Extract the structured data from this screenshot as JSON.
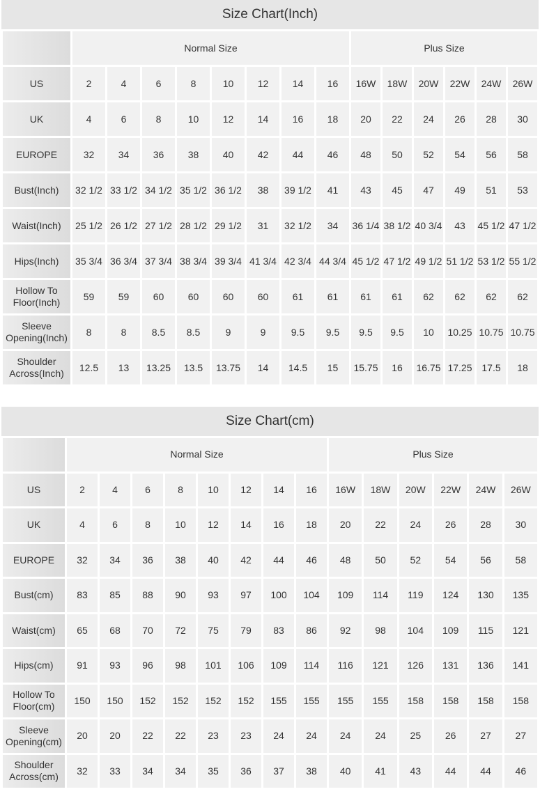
{
  "charts": [
    {
      "title": "Size Chart(Inch)",
      "groups": {
        "normal": "Normal Size",
        "plus": "Plus Size"
      },
      "rows": [
        {
          "label": "US",
          "values": [
            "2",
            "4",
            "6",
            "8",
            "10",
            "12",
            "14",
            "16",
            "16W",
            "18W",
            "20W",
            "22W",
            "24W",
            "26W"
          ]
        },
        {
          "label": "UK",
          "values": [
            "4",
            "6",
            "8",
            "10",
            "12",
            "14",
            "16",
            "18",
            "20",
            "22",
            "24",
            "26",
            "28",
            "30"
          ]
        },
        {
          "label": "EUROPE",
          "values": [
            "32",
            "34",
            "36",
            "38",
            "40",
            "42",
            "44",
            "46",
            "48",
            "50",
            "52",
            "54",
            "56",
            "58"
          ]
        },
        {
          "label": "Bust(Inch)",
          "values": [
            "32 1/2",
            "33 1/2",
            "34 1/2",
            "35 1/2",
            "36 1/2",
            "38",
            "39 1/2",
            "41",
            "43",
            "45",
            "47",
            "49",
            "51",
            "53"
          ]
        },
        {
          "label": "Waist(Inch)",
          "values": [
            "25 1/2",
            "26 1/2",
            "27 1/2",
            "28 1/2",
            "29 1/2",
            "31",
            "32 1/2",
            "34",
            "36 1/4",
            "38 1/2",
            "40 3/4",
            "43",
            "45 1/2",
            "47 1/2"
          ]
        },
        {
          "label": "Hips(Inch)",
          "values": [
            "35 3/4",
            "36 3/4",
            "37 3/4",
            "38 3/4",
            "39 3/4",
            "41 3/4",
            "42 3/4",
            "44 3/4",
            "45 1/2",
            "47 1/2",
            "49 1/2",
            "51 1/2",
            "53 1/2",
            "55 1/2"
          ]
        },
        {
          "label": "Hollow To Floor(Inch)",
          "values": [
            "59",
            "59",
            "60",
            "60",
            "60",
            "60",
            "61",
            "61",
            "61",
            "61",
            "62",
            "62",
            "62",
            "62"
          ]
        },
        {
          "label": "Sleeve Opening(Inch)",
          "values": [
            "8",
            "8",
            "8.5",
            "8.5",
            "9",
            "9",
            "9.5",
            "9.5",
            "9.5",
            "9.5",
            "10",
            "10.25",
            "10.75",
            "10.75"
          ]
        },
        {
          "label": "Shoulder Across(Inch)",
          "values": [
            "12.5",
            "13",
            "13.25",
            "13.5",
            "13.75",
            "14",
            "14.5",
            "15",
            "15.75",
            "16",
            "16.75",
            "17.25",
            "17.5",
            "18"
          ]
        }
      ]
    },
    {
      "title": "Size Chart(cm)",
      "groups": {
        "normal": "Normal Size",
        "plus": "Plus Size"
      },
      "rows": [
        {
          "label": "US",
          "values": [
            "2",
            "4",
            "6",
            "8",
            "10",
            "12",
            "14",
            "16",
            "16W",
            "18W",
            "20W",
            "22W",
            "24W",
            "26W"
          ]
        },
        {
          "label": "UK",
          "values": [
            "4",
            "6",
            "8",
            "10",
            "12",
            "14",
            "16",
            "18",
            "20",
            "22",
            "24",
            "26",
            "28",
            "30"
          ]
        },
        {
          "label": "EUROPE",
          "values": [
            "32",
            "34",
            "36",
            "38",
            "40",
            "42",
            "44",
            "46",
            "48",
            "50",
            "52",
            "54",
            "56",
            "58"
          ]
        },
        {
          "label": "Bust(cm)",
          "values": [
            "83",
            "85",
            "88",
            "90",
            "93",
            "97",
            "100",
            "104",
            "109",
            "114",
            "119",
            "124",
            "130",
            "135"
          ]
        },
        {
          "label": "Waist(cm)",
          "values": [
            "65",
            "68",
            "70",
            "72",
            "75",
            "79",
            "83",
            "86",
            "92",
            "98",
            "104",
            "109",
            "115",
            "121"
          ]
        },
        {
          "label": "Hips(cm)",
          "values": [
            "91",
            "93",
            "96",
            "98",
            "101",
            "106",
            "109",
            "114",
            "116",
            "121",
            "126",
            "131",
            "136",
            "141"
          ]
        },
        {
          "label": "Hollow To Floor(cm)",
          "values": [
            "150",
            "150",
            "152",
            "152",
            "152",
            "152",
            "155",
            "155",
            "155",
            "155",
            "158",
            "158",
            "158",
            "158"
          ]
        },
        {
          "label": "Sleeve Opening(cm)",
          "values": [
            "20",
            "20",
            "22",
            "22",
            "23",
            "23",
            "24",
            "24",
            "24",
            "24",
            "25",
            "26",
            "27",
            "27"
          ]
        },
        {
          "label": "Shoulder Across(cm)",
          "values": [
            "32",
            "33",
            "34",
            "34",
            "35",
            "36",
            "37",
            "38",
            "40",
            "41",
            "43",
            "44",
            "44",
            "46"
          ]
        }
      ]
    }
  ]
}
